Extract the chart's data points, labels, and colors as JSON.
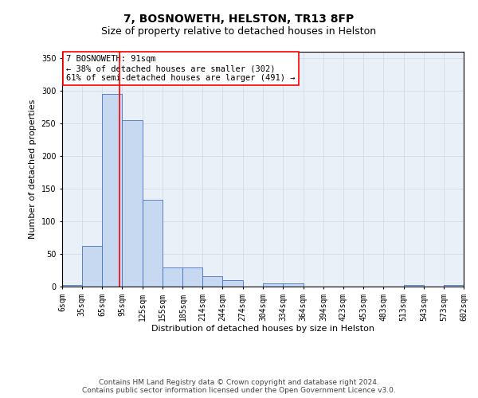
{
  "title1": "7, BOSNOWETH, HELSTON, TR13 8FP",
  "title2": "Size of property relative to detached houses in Helston",
  "xlabel": "Distribution of detached houses by size in Helston",
  "ylabel": "Number of detached properties",
  "annotation_line1": "7 BOSNOWETH: 91sqm",
  "annotation_line2": "← 38% of detached houses are smaller (302)",
  "annotation_line3": "61% of semi-detached houses are larger (491) →",
  "property_sqm": 91,
  "bin_edges": [
    6,
    35,
    65,
    95,
    125,
    155,
    185,
    214,
    244,
    274,
    304,
    334,
    364,
    394,
    423,
    453,
    483,
    513,
    543,
    573,
    602
  ],
  "bar_heights": [
    2,
    62,
    295,
    255,
    133,
    29,
    29,
    16,
    10,
    0,
    5,
    5,
    0,
    0,
    0,
    0,
    0,
    2,
    0,
    2
  ],
  "bar_color": "#c6d9f1",
  "bar_edge_color": "#4472c4",
  "vline_color": "#ff0000",
  "vline_x": 91,
  "ylim": [
    0,
    360
  ],
  "yticks": [
    0,
    50,
    100,
    150,
    200,
    250,
    300,
    350
  ],
  "grid_color": "#d0d8e8",
  "axes_facecolor": "#eaf0f8",
  "annotation_box_color": "#ffffff",
  "annotation_box_edge": "#ff0000",
  "footer_line1": "Contains HM Land Registry data © Crown copyright and database right 2024.",
  "footer_line2": "Contains public sector information licensed under the Open Government Licence v3.0.",
  "title_fontsize": 10,
  "subtitle_fontsize": 9,
  "axis_label_fontsize": 8,
  "tick_fontsize": 7,
  "annotation_fontsize": 7.5,
  "footer_fontsize": 6.5
}
